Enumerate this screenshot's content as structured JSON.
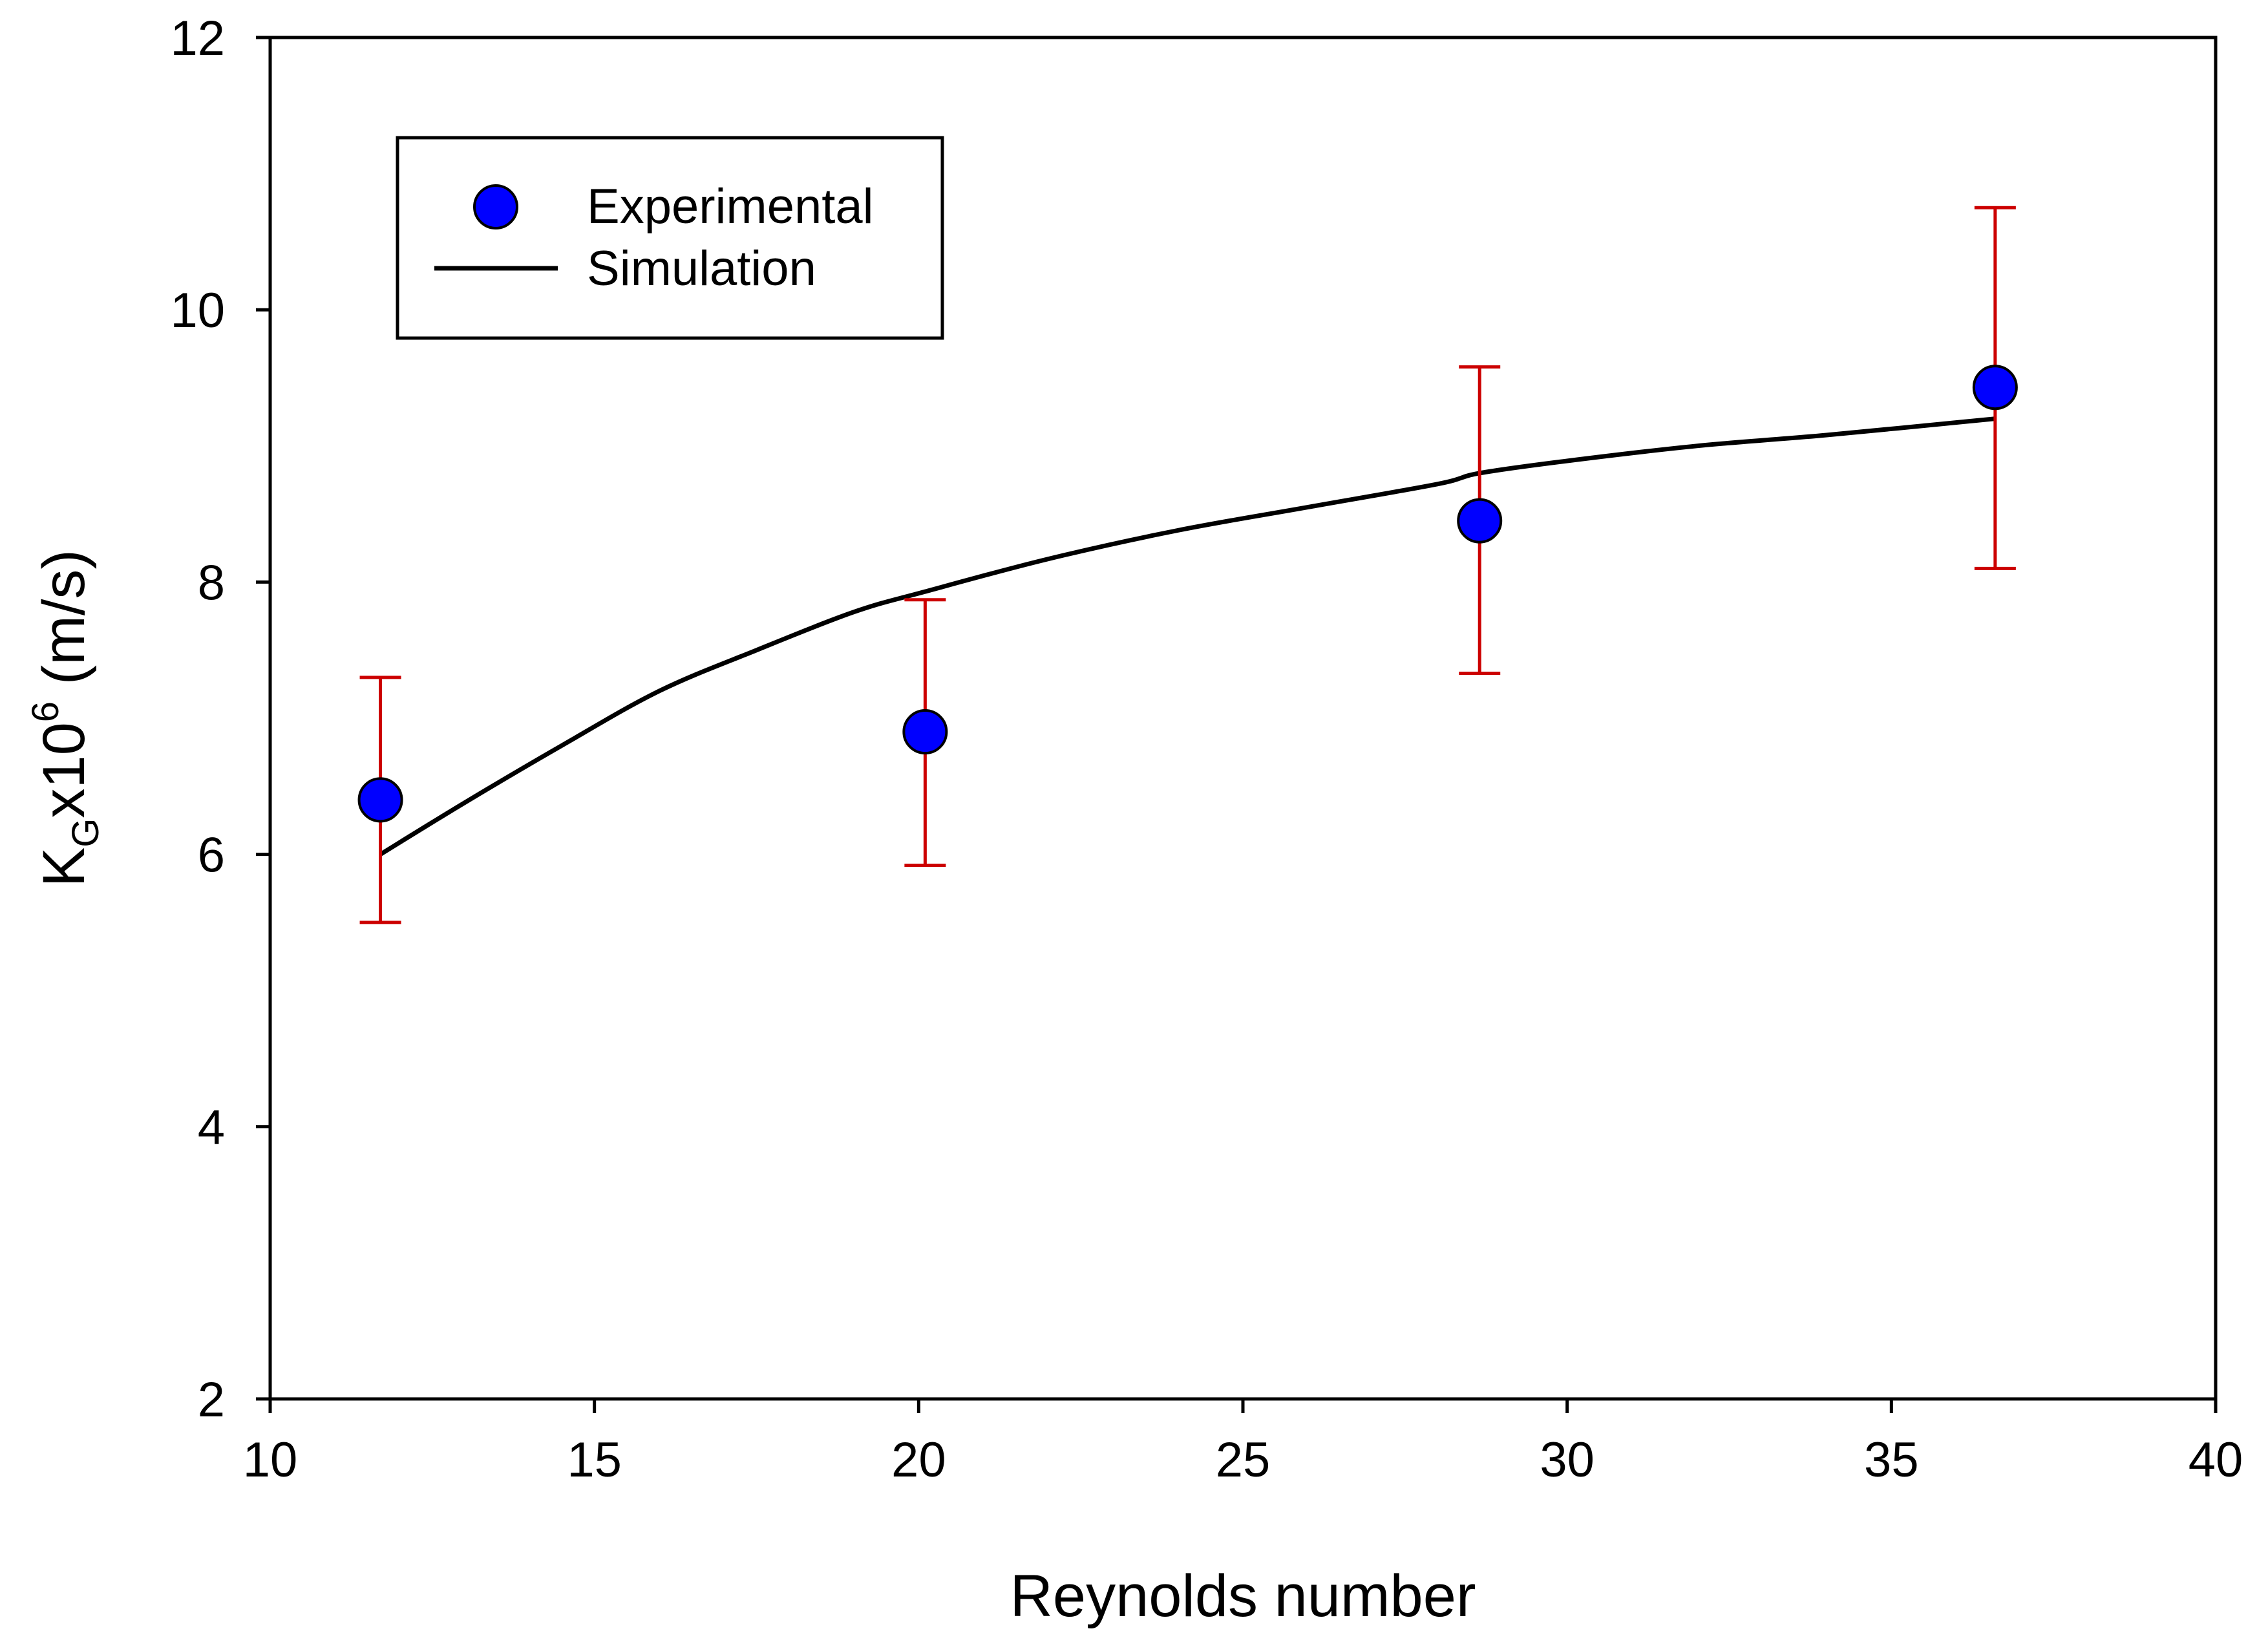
{
  "chart_data": {
    "type": "scatter",
    "title": "",
    "xlabel": "Reynolds number",
    "ylabel": {
      "base": "K",
      "subscript": "G",
      "mid": "x10",
      "superscript": "6",
      "unit": " (m/s)"
    },
    "xlim": [
      10,
      40
    ],
    "ylim": [
      2,
      12
    ],
    "xticks": [
      10,
      15,
      20,
      25,
      30,
      35,
      40
    ],
    "yticks": [
      2,
      4,
      6,
      8,
      10,
      12
    ],
    "grid": false,
    "legend_position": "top-left",
    "series": [
      {
        "name": "Experimental",
        "type": "scatter",
        "color": "#0000ff",
        "error_color": "#cc0000",
        "x": [
          11.7,
          20.1,
          28.65,
          36.6
        ],
        "y": [
          6.4,
          6.9,
          8.45,
          9.43
        ],
        "y_err_low": [
          5.5,
          5.92,
          7.33,
          8.1
        ],
        "y_err_high": [
          7.3,
          7.87,
          9.58,
          10.75
        ]
      },
      {
        "name": "Simulation",
        "type": "line",
        "color": "#000000",
        "x": [
          11.7,
          13,
          14.5,
          16,
          17.5,
          19,
          20.1,
          22,
          24,
          26,
          28,
          28.65,
          30,
          32,
          34,
          36.6
        ],
        "y": [
          6.0,
          6.38,
          6.8,
          7.2,
          7.5,
          7.78,
          7.93,
          8.17,
          8.38,
          8.55,
          8.72,
          8.8,
          8.89,
          9.0,
          9.08,
          9.2
        ]
      }
    ]
  }
}
